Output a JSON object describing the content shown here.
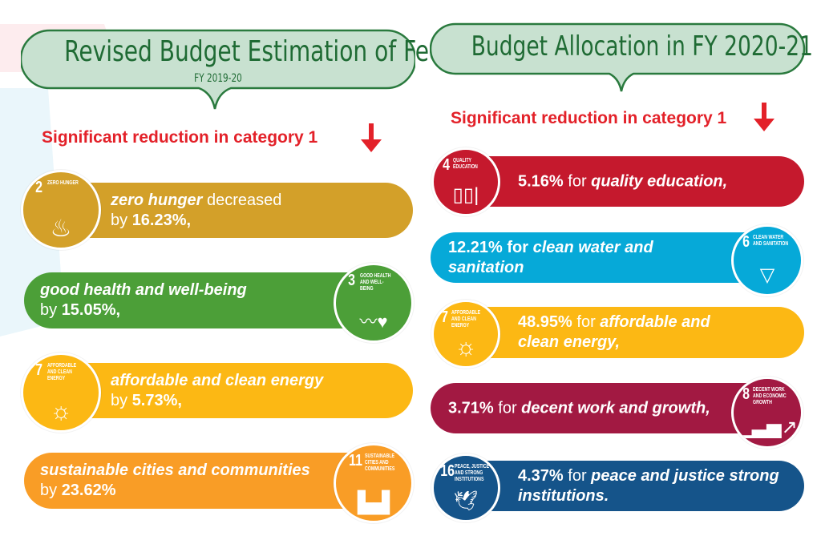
{
  "left": {
    "title": "Revised Budget Estimation of Federal",
    "subtitle": "FY 2019-20",
    "heading": "Significant reduction in category 1",
    "items": [
      {
        "goal": "2",
        "goal_label": "Zero Hunger",
        "icon": "bowl-icon",
        "glyph": "♨",
        "color": "#d3a029",
        "l1a": "zero hunger",
        "l1b": " decreased",
        "l2a": "by ",
        "l2b": "16.23%,"
      },
      {
        "goal": "3",
        "goal_label": "Good Health and Well-Being",
        "icon": "heartbeat-icon",
        "glyph": "〰♥",
        "color": "#4c9f38",
        "l1a": "good health and well-being",
        "l1b": "",
        "l2a": "by ",
        "l2b": "15.05%,"
      },
      {
        "goal": "7",
        "goal_label": "Affordable and Clean Energy",
        "icon": "sun-power-icon",
        "glyph": "☼",
        "color": "#fcb814",
        "l1a": "affordable and clean energy",
        "l1b": "",
        "l2a": "by ",
        "l2b": "5.73%,"
      },
      {
        "goal": "11",
        "goal_label": "Sustainable Cities and Communities",
        "icon": "city-icon",
        "glyph": "▙▟",
        "color": "#f99d26",
        "l1a": "sustainable cities and communities",
        "l1b": "",
        "l2a": "by ",
        "l2b": "23.62%"
      }
    ]
  },
  "right": {
    "title": "Budget Allocation in FY 2020-21",
    "heading": "Significant reduction in category 1",
    "items": [
      {
        "goal": "4",
        "goal_label": "Quality Education",
        "icon": "book-pencil-icon",
        "glyph": "📖",
        "color": "#c5192d",
        "pct": "5.16%",
        "mid": " for ",
        "topic": "quality education,",
        "topic2": ""
      },
      {
        "goal": "6",
        "goal_label": "Clean Water and Sanitation",
        "icon": "water-glass-icon",
        "glyph": "💧",
        "color": "#06a9d8",
        "pct": "12.21% for ",
        "mid": "",
        "topic": "clean water and",
        "topic2": "sanitation"
      },
      {
        "goal": "7",
        "goal_label": "Affordable and Clean Energy",
        "icon": "sun-power-icon",
        "glyph": "☼",
        "color": "#fcb814",
        "pct": "48.95%",
        "mid": " for ",
        "topic": "affordable and",
        "topic2": "clean energy,"
      },
      {
        "goal": "8",
        "goal_label": "Decent Work and Economic Growth",
        "icon": "growth-chart-icon",
        "glyph": "📈",
        "color": "#a21942",
        "pct": "3.71%",
        "mid": " for ",
        "topic": "decent work and growth,",
        "topic2": ""
      },
      {
        "goal": "16",
        "goal_label": "Peace, Justice and Strong Institutions",
        "icon": "dove-gavel-icon",
        "glyph": "🕊",
        "color": "#15548a",
        "pct": "4.37%",
        "mid": " for ",
        "topic": "peace and justice strong",
        "topic2": "institutions."
      }
    ]
  },
  "colors": {
    "banner_fill": "#c8e1d0",
    "banner_border": "#2a7a3e",
    "heading_red": "#e32129"
  }
}
